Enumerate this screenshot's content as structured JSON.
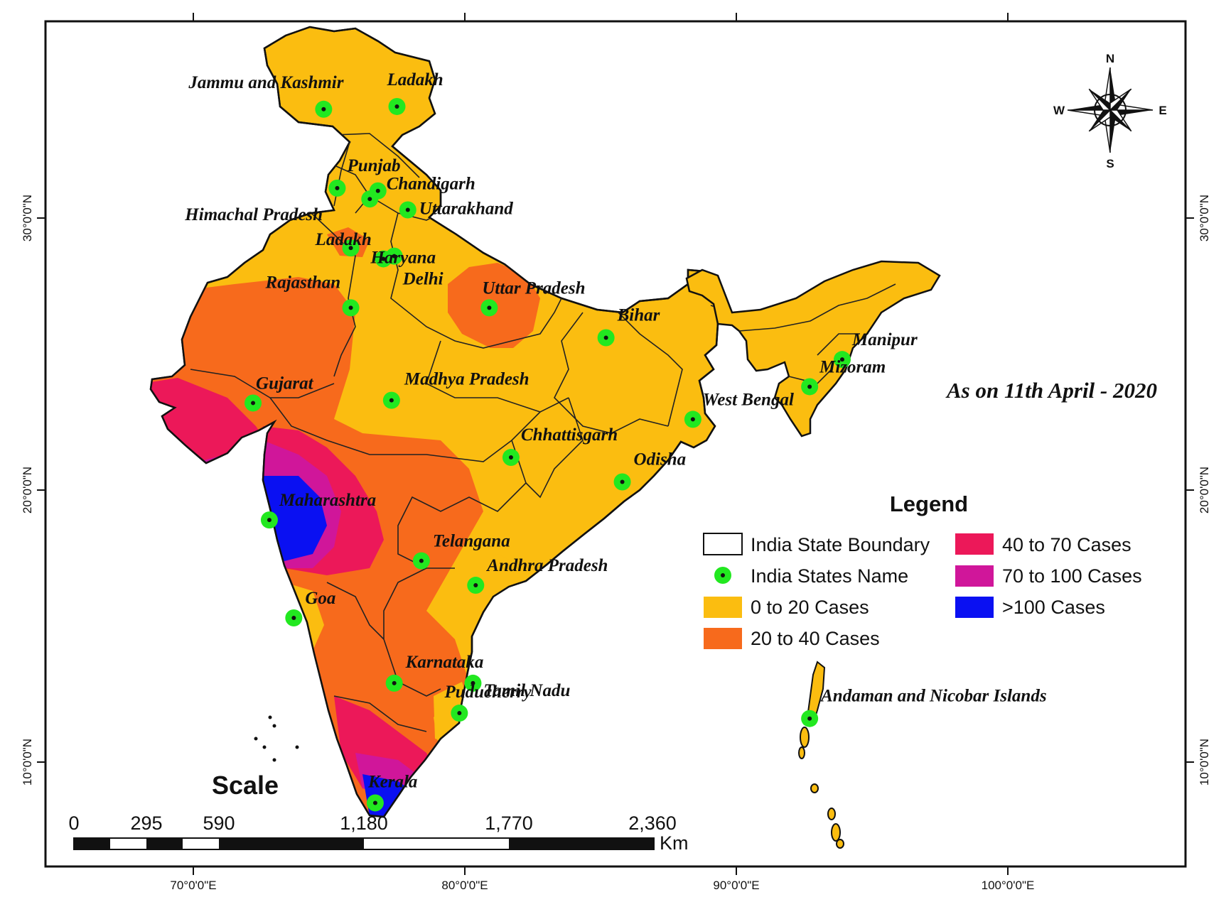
{
  "colors": {
    "cases_0_20": "#fbbd10",
    "cases_20_40": "#f76a1c",
    "cases_40_70": "#ec1859",
    "cases_70_100": "#d0169a",
    "cases_100_plus": "#0a10f2",
    "state_point": "#22e820"
  },
  "grid": {
    "longitudes": [
      "70°0'0\"E",
      "80°0'0\"E",
      "90°0'0\"E",
      "100°0'0\"E"
    ],
    "latitudes": [
      "30°0'0\"N",
      "20°0'0\"N",
      "10°0'0\"N"
    ]
  },
  "compass": {
    "n": "N",
    "s": "S",
    "e": "E",
    "w": "W",
    "icon": "compass-rose-icon"
  },
  "date_label": "As on 11th April - 2020",
  "legend": {
    "title": "Legend",
    "items": [
      {
        "label": "India State Boundary",
        "symbol": "boundary-box",
        "color": "#ffffff"
      },
      {
        "label": "India States Name",
        "symbol": "point",
        "color": "#22e820"
      },
      {
        "label": "0 to 20 Cases",
        "symbol": "fill",
        "color": "#fbbd10"
      },
      {
        "label": "20 to 40 Cases",
        "symbol": "fill",
        "color": "#f76a1c"
      },
      {
        "label": "40 to 70 Cases",
        "symbol": "fill",
        "color": "#ec1859"
      },
      {
        "label": "70 to 100 Cases",
        "symbol": "fill",
        "color": "#d0169a"
      },
      {
        "label": ">100 Cases",
        "symbol": "fill",
        "color": "#0a10f2"
      }
    ]
  },
  "scale_bar": {
    "title": "Scale",
    "ticks": [
      "0",
      "295",
      "590",
      "1,180",
      "1,770",
      "2,360"
    ],
    "unit": "Km"
  },
  "states": [
    {
      "name": "Jammu and Kashmir",
      "lon": 74.8,
      "lat": 34.0
    },
    {
      "name": "Ladakh",
      "lon": 77.5,
      "lat": 34.1
    },
    {
      "name": "Punjab",
      "lon": 75.3,
      "lat": 31.1
    },
    {
      "name": "Chandigarh",
      "lon": 76.8,
      "lat": 31.0
    },
    {
      "name": "Himachal Pradesh",
      "lon": 76.5,
      "lat": 30.7
    },
    {
      "name": "Uttarakhand",
      "lon": 77.9,
      "lat": 30.3
    },
    {
      "name": "Delhi",
      "lon": 77.4,
      "lat": 28.6
    },
    {
      "name": "Ladakh",
      "lon": 75.8,
      "lat": 28.9
    },
    {
      "name": "Haryana",
      "lon": 77.0,
      "lat": 28.5
    },
    {
      "name": "Rajasthan",
      "lon": 75.8,
      "lat": 26.7
    },
    {
      "name": "Uttar Pradesh",
      "lon": 80.9,
      "lat": 26.7
    },
    {
      "name": "Bihar",
      "lon": 85.2,
      "lat": 25.6
    },
    {
      "name": "Manipur",
      "lon": 93.9,
      "lat": 24.8
    },
    {
      "name": "Mizoram",
      "lon": 92.7,
      "lat": 23.8
    },
    {
      "name": "Gujarat",
      "lon": 72.2,
      "lat": 23.2
    },
    {
      "name": "Madhya Pradesh",
      "lon": 77.3,
      "lat": 23.3
    },
    {
      "name": "West Bengal",
      "lon": 88.4,
      "lat": 22.6
    },
    {
      "name": "Chhattisgarh",
      "lon": 81.7,
      "lat": 21.2
    },
    {
      "name": "Odisha",
      "lon": 85.8,
      "lat": 20.3
    },
    {
      "name": "Maharashtra",
      "lon": 72.8,
      "lat": 18.9
    },
    {
      "name": "Telangana",
      "lon": 78.4,
      "lat": 17.4
    },
    {
      "name": "Andhra Pradesh",
      "lon": 80.4,
      "lat": 16.5
    },
    {
      "name": "Goa",
      "lon": 73.7,
      "lat": 15.3
    },
    {
      "name": "Karnataka",
      "lon": 77.4,
      "lat": 12.9
    },
    {
      "name": "Puducherry",
      "lon": 80.3,
      "lat": 12.9
    },
    {
      "name": "Tamil Nadu",
      "lon": 79.8,
      "lat": 11.8
    },
    {
      "name": "Andaman and Nicobar Islands",
      "lon": 92.7,
      "lat": 11.6
    },
    {
      "name": "Kerala",
      "lon": 76.7,
      "lat": 8.5
    }
  ]
}
